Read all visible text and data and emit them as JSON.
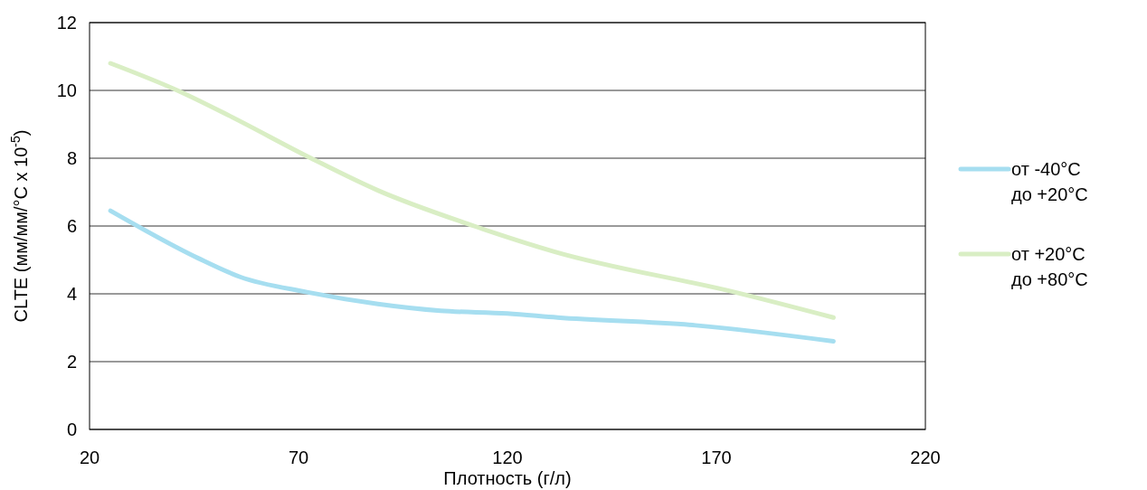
{
  "chart_data": {
    "type": "line",
    "xlabel": "Плотность (г/л)",
    "ylabel": "CLTE (мм/мм/°C x 10$^{-5}$)",
    "xlim": [
      20,
      220
    ],
    "xticks": [
      20,
      70,
      120,
      170,
      220
    ],
    "ylim": [
      0,
      12
    ],
    "yticks": [
      0,
      2,
      4,
      6,
      8,
      10,
      12
    ],
    "grid": "y",
    "legend": "right",
    "marker": "none",
    "line_style": "solid",
    "series": [
      {
        "name": "от -40°C до +20°C",
        "color": "#a6def0",
        "x": [
          25,
          46,
          56,
          72,
          89,
          104,
          120,
          132,
          165,
          198
        ],
        "values": [
          6.45,
          5.05,
          4.5,
          4.05,
          3.7,
          3.5,
          3.42,
          3.3,
          3.07,
          2.6
        ]
      },
      {
        "name": "от +20°C до +80°C",
        "color": "#d9eec4",
        "x": [
          25,
          41,
          53.5,
          73,
          89,
          112,
          131,
          175,
          198
        ],
        "values": [
          10.8,
          10,
          9.25,
          8,
          7.05,
          6,
          5.25,
          4.03,
          3.3
        ]
      }
    ]
  }
}
